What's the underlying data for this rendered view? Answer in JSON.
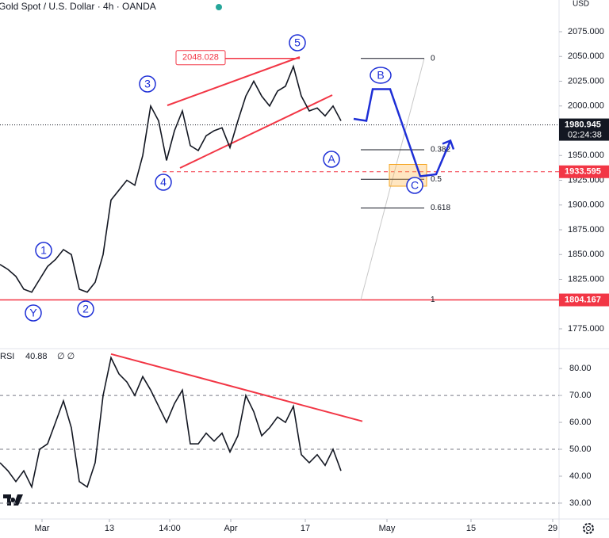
{
  "header": {
    "title": "Gold Spot / U.S. Dollar · 4h · OANDA",
    "currency": "USD"
  },
  "chart_data": [
    {
      "type": "line",
      "x": [
        -5.3,
        -4.3,
        -3.3,
        -2.3,
        -1.3,
        -0.3,
        0.7,
        1.7,
        2.7,
        3.7,
        4.7,
        5.7,
        6.7,
        7.7,
        8.7,
        9.7,
        10.7,
        11.7,
        12.7,
        13.7,
        14.7,
        15.7,
        16.7,
        17.7,
        18.7,
        19.7,
        20.7,
        21.7,
        22.7,
        23.7,
        24.7,
        25.7,
        26.7,
        27.7,
        28.7,
        29.7,
        30.7,
        31.7,
        32.7,
        33.7,
        34.7,
        35.7,
        36.7,
        37.7
      ],
      "series": [
        {
          "color": "#131722",
          "values": [
            1840,
            1835,
            1828,
            1815,
            1812,
            1825,
            1838,
            1845,
            1855,
            1850,
            1815,
            1812,
            1822,
            1850,
            1905,
            1915,
            1925,
            1920,
            1950,
            2000,
            1985,
            1945,
            1975,
            1995,
            1960,
            1955,
            1970,
            1975,
            1978,
            1958,
            1985,
            2010,
            2025,
            2010,
            2000,
            2015,
            2020,
            2040,
            2010,
            1995,
            1998,
            1990,
            2000,
            1985
          ]
        }
      ],
      "xlim": [
        -5.3,
        65.2
      ],
      "ylim": [
        1755,
        2107
      ],
      "yticks": [
        {
          "value": 2075,
          "label": "2075.000"
        },
        {
          "value": 2050,
          "label": "2050.000"
        },
        {
          "value": 2025,
          "label": "2025.000"
        },
        {
          "value": 2000,
          "label": "2000.000"
        },
        {
          "value": 1950,
          "label": "1950.000"
        },
        {
          "value": 1925,
          "label": "1925.000"
        },
        {
          "value": 1900,
          "label": "1900.000"
        },
        {
          "value": 1875,
          "label": "1875.000"
        },
        {
          "value": 1850,
          "label": "1850.000"
        },
        {
          "value": 1825,
          "label": "1825.000"
        },
        {
          "value": 1775,
          "label": "1775.000"
        }
      ],
      "current_price": 1980.945,
      "countdown": "02:24:38",
      "support": 1933.595,
      "low_line": 1804.167,
      "resistance": 2048.028,
      "fib": {
        "levels": [
          0,
          0.382,
          0.5,
          0.618,
          1
        ],
        "prices": [
          2048,
          1955.8,
          1926,
          1897,
          1804.167
        ]
      },
      "zone": {
        "top": 1941,
        "bottom": 1919
      },
      "trendlines": [
        {
          "x": [
            15.8,
            32.5
          ],
          "y": [
            2000.6,
            2049.4
          ]
        },
        {
          "x": [
            17.4,
            36.6
          ],
          "y": [
            1937.4,
            2011
          ]
        }
      ],
      "projection": {
        "color": "#1e2fd6",
        "x": [
          39.3,
          40.9,
          41.7,
          43.9,
          47.7,
          49.7,
          51.5
        ],
        "y": [
          1987,
          1985,
          2017,
          2017,
          1929,
          1931,
          1965
        ]
      },
      "waves": [
        "1",
        "2",
        "3",
        "4",
        "5",
        "Y",
        "A",
        "B",
        "C"
      ]
    },
    {
      "type": "line",
      "name": "RSI",
      "value_text": "40.88",
      "settings": "∅ ∅",
      "x": [
        -5.3,
        -4.3,
        -3.3,
        -2.3,
        -1.3,
        -0.3,
        0.7,
        1.7,
        2.7,
        3.7,
        4.7,
        5.7,
        6.7,
        7.7,
        8.7,
        9.7,
        10.7,
        11.7,
        12.7,
        13.7,
        14.7,
        15.7,
        16.7,
        17.7,
        18.7,
        19.7,
        20.7,
        21.7,
        22.7,
        23.7,
        24.7,
        25.7,
        26.7,
        27.7,
        28.7,
        29.7,
        30.7,
        31.7,
        32.7,
        33.7,
        34.7,
        35.7,
        36.7,
        37.7
      ],
      "series": [
        {
          "color": "#131722",
          "values": [
            45,
            42,
            38,
            42,
            36,
            50,
            52,
            60,
            68,
            58,
            38,
            36,
            45,
            70,
            84,
            78,
            75,
            70,
            77,
            72,
            66,
            60,
            67,
            72,
            52,
            52,
            56,
            53,
            56,
            49,
            55,
            70,
            64,
            55,
            58,
            62,
            60,
            66,
            48,
            45,
            48,
            44,
            50,
            42
          ]
        }
      ],
      "xlim": [
        -5.3,
        65.2
      ],
      "ylim": [
        24.1,
        87.4
      ],
      "yticks": [
        {
          "value": 80,
          "label": "80.00"
        },
        {
          "value": 70,
          "label": "70.00"
        },
        {
          "value": 60,
          "label": "60.00"
        },
        {
          "value": 50,
          "label": "50.00"
        },
        {
          "value": 40,
          "label": "40.00"
        },
        {
          "value": 30,
          "label": "30.00"
        }
      ],
      "dashed_levels": [
        70,
        50,
        30
      ],
      "trendline": {
        "x": [
          8.7,
          40.4
        ],
        "y": [
          85.4,
          60.4
        ]
      },
      "xticks": [
        {
          "value": 0,
          "label": "Mar"
        },
        {
          "value": 8.5,
          "label": "13"
        },
        {
          "value": 16.1,
          "label": "14:00"
        },
        {
          "value": 23.8,
          "label": "Apr"
        },
        {
          "value": 33.2,
          "label": "17"
        },
        {
          "value": 43.5,
          "label": "May"
        },
        {
          "value": 54.1,
          "label": "15"
        },
        {
          "value": 64.4,
          "label": "29"
        }
      ]
    }
  ]
}
